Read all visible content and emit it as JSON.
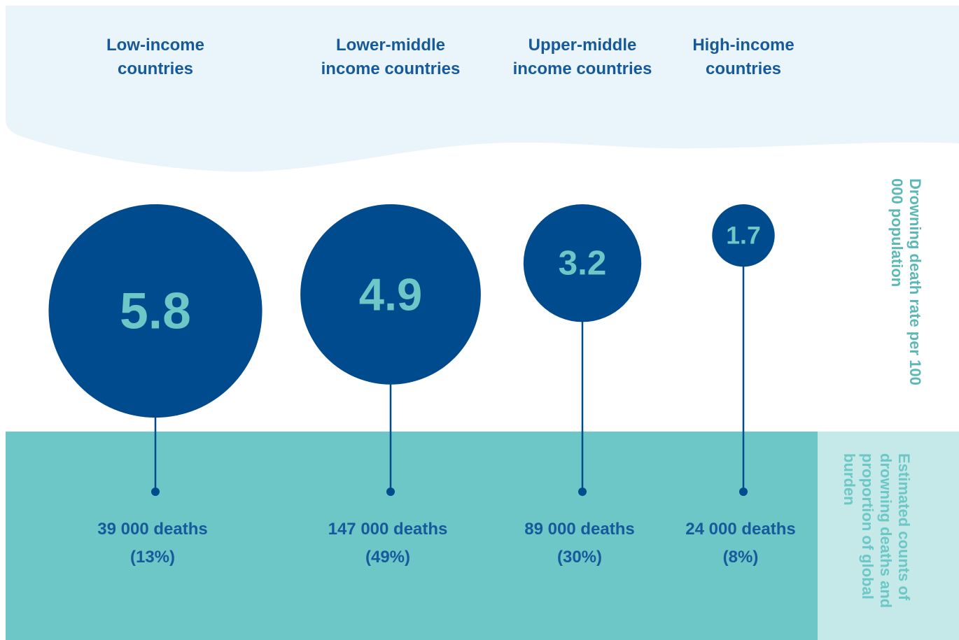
{
  "chart_data": {
    "type": "bubble",
    "categories": [
      "Low-income countries",
      "Lower-middle income countries",
      "Upper-middle income countries",
      "High-income countries"
    ],
    "values": [
      5.8,
      4.9,
      3.2,
      1.7
    ],
    "deaths": {
      "values": [
        39000,
        147000,
        89000,
        24000
      ],
      "value_labels": [
        "39 000 deaths",
        "147 000 deaths",
        "89 000 deaths",
        "24 000 deaths"
      ]
    },
    "shares": {
      "values": [
        13,
        49,
        30,
        8
      ],
      "value_labels": [
        "(13%)",
        "(49%)",
        "(30%)",
        "(8%)"
      ]
    },
    "y_label": "Drowning death rate per 100 000 population",
    "bottom_label": "Estimated counts of drowning deaths and proportion of global burden",
    "color": "#004b8d",
    "value_color": "#6cc7c6"
  }
}
